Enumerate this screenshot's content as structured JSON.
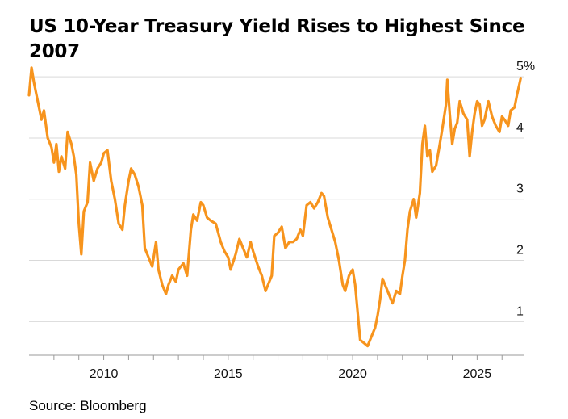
{
  "title": "US 10-Year Treasury Yield Rises to Highest Since 2007",
  "source": "Source: Bloomberg",
  "colors": {
    "line": "#f7941d",
    "grid": "#d9d9d9",
    "axis": "#9a9a9a"
  },
  "chart_data": {
    "type": "line",
    "title": "US 10-Year Treasury Yield Rises to Highest Since 2007",
    "xlabel": "",
    "ylabel": "",
    "xlim": [
      2007.0,
      2026.9
    ],
    "ylim": [
      0.45,
      5.2
    ],
    "grid": true,
    "yticks": [
      1,
      2,
      3,
      4,
      5
    ],
    "ytick_labels": [
      "1",
      "2",
      "3",
      "4",
      "5%"
    ],
    "xticks": [
      2010,
      2015,
      2020,
      2025
    ],
    "xtick_labels": [
      "2010",
      "2015",
      "2020",
      "2025"
    ],
    "series": [
      {
        "name": "",
        "x": [
          2007.0,
          2007.1,
          2007.2,
          2007.35,
          2007.5,
          2007.6,
          2007.75,
          2007.9,
          2008.0,
          2008.1,
          2008.2,
          2008.3,
          2008.45,
          2008.55,
          2008.7,
          2008.8,
          2008.9,
          2009.0,
          2009.1,
          2009.2,
          2009.35,
          2009.45,
          2009.6,
          2009.75,
          2009.9,
          2010.0,
          2010.15,
          2010.3,
          2010.45,
          2010.6,
          2010.75,
          2010.85,
          2011.0,
          2011.1,
          2011.25,
          2011.4,
          2011.55,
          2011.65,
          2011.8,
          2011.95,
          2012.1,
          2012.2,
          2012.35,
          2012.5,
          2012.6,
          2012.75,
          2012.9,
          2013.0,
          2013.2,
          2013.35,
          2013.5,
          2013.6,
          2013.75,
          2013.9,
          2014.0,
          2014.15,
          2014.3,
          2014.5,
          2014.7,
          2014.85,
          2015.0,
          2015.1,
          2015.3,
          2015.45,
          2015.6,
          2015.75,
          2015.9,
          2016.0,
          2016.2,
          2016.35,
          2016.5,
          2016.6,
          2016.75,
          2016.85,
          2017.0,
          2017.15,
          2017.3,
          2017.45,
          2017.6,
          2017.75,
          2017.9,
          2018.0,
          2018.15,
          2018.3,
          2018.45,
          2018.6,
          2018.75,
          2018.85,
          2019.0,
          2019.15,
          2019.3,
          2019.45,
          2019.6,
          2019.7,
          2019.85,
          2020.0,
          2020.1,
          2020.2,
          2020.3,
          2020.45,
          2020.6,
          2020.75,
          2020.9,
          2021.0,
          2021.1,
          2021.2,
          2021.35,
          2021.5,
          2021.6,
          2021.75,
          2021.9,
          2022.0,
          2022.1,
          2022.2,
          2022.3,
          2022.45,
          2022.55,
          2022.7,
          2022.8,
          2022.9,
          2023.0,
          2023.1,
          2023.2,
          2023.35,
          2023.5,
          2023.6,
          2023.75,
          2023.8,
          2023.9,
          2024.0,
          2024.1,
          2024.2,
          2024.3,
          2024.45,
          2024.6,
          2024.7,
          2024.8,
          2024.9,
          2025.0,
          2025.1,
          2025.2,
          2025.3,
          2025.45,
          2025.6,
          2025.75,
          2025.9,
          2026.0,
          2026.1,
          2026.25,
          2026.35,
          2026.5,
          2026.6,
          2026.75
        ],
        "values": [
          4.7,
          5.15,
          4.9,
          4.6,
          4.3,
          4.45,
          4.0,
          3.85,
          3.6,
          3.9,
          3.45,
          3.7,
          3.5,
          4.1,
          3.9,
          3.7,
          3.4,
          2.6,
          2.1,
          2.8,
          2.95,
          3.6,
          3.3,
          3.5,
          3.6,
          3.75,
          3.8,
          3.3,
          3.0,
          2.6,
          2.5,
          2.9,
          3.3,
          3.5,
          3.4,
          3.2,
          2.9,
          2.2,
          2.05,
          1.9,
          2.3,
          1.85,
          1.6,
          1.45,
          1.6,
          1.75,
          1.65,
          1.85,
          1.95,
          1.75,
          2.5,
          2.75,
          2.65,
          2.95,
          2.9,
          2.7,
          2.65,
          2.6,
          2.3,
          2.15,
          2.05,
          1.85,
          2.1,
          2.35,
          2.2,
          2.05,
          2.3,
          2.15,
          1.9,
          1.75,
          1.5,
          1.6,
          1.75,
          2.4,
          2.45,
          2.55,
          2.2,
          2.3,
          2.3,
          2.35,
          2.5,
          2.4,
          2.9,
          2.95,
          2.85,
          2.95,
          3.1,
          3.05,
          2.7,
          2.5,
          2.3,
          2.0,
          1.6,
          1.5,
          1.75,
          1.85,
          1.6,
          1.15,
          0.7,
          0.65,
          0.6,
          0.75,
          0.9,
          1.1,
          1.35,
          1.7,
          1.55,
          1.4,
          1.3,
          1.5,
          1.45,
          1.75,
          2.0,
          2.5,
          2.8,
          3.0,
          2.7,
          3.1,
          3.9,
          4.2,
          3.7,
          3.8,
          3.45,
          3.55,
          3.9,
          4.15,
          4.55,
          4.95,
          4.4,
          3.9,
          4.15,
          4.25,
          4.6,
          4.4,
          4.3,
          3.7,
          4.1,
          4.4,
          4.6,
          4.55,
          4.2,
          4.3,
          4.6,
          4.35,
          4.2,
          4.1,
          4.35,
          4.3,
          4.2,
          4.45,
          4.5,
          4.7,
          4.98
        ]
      }
    ]
  }
}
